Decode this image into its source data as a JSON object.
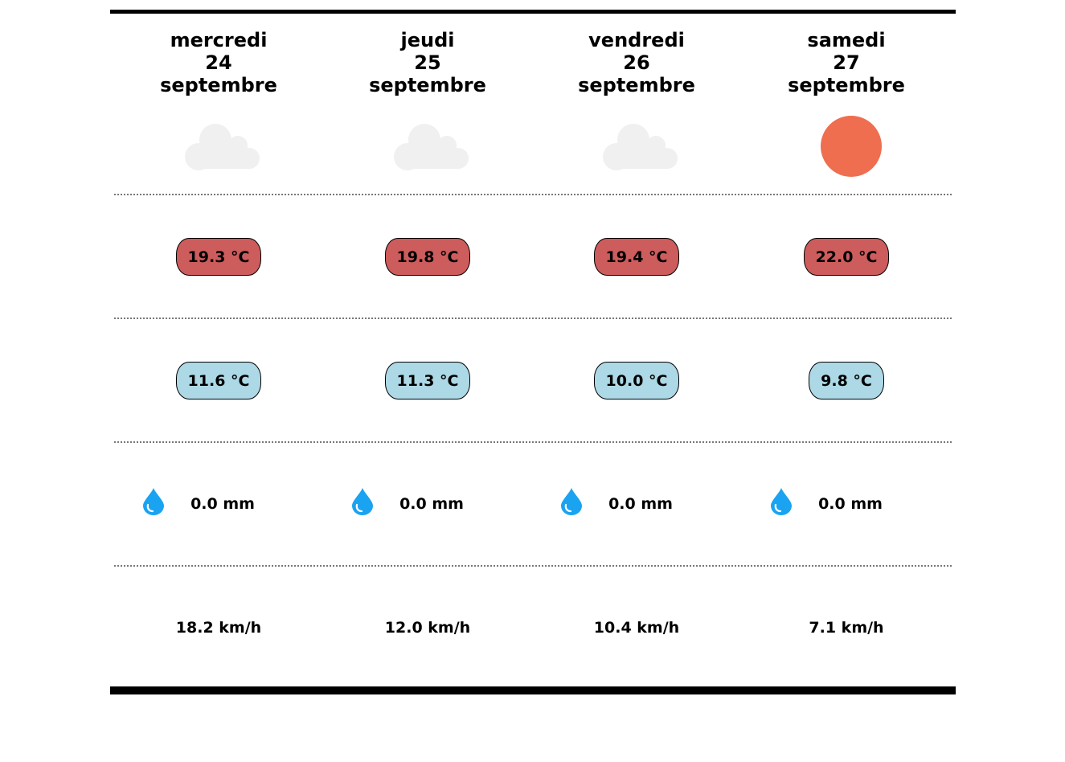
{
  "days": [
    {
      "weekday": "mercredi",
      "day": "24",
      "month": "septembre",
      "icon": "cloud-icon",
      "temp_max": "19.3 °C",
      "temp_min": "11.6 °C",
      "precipitation": "0.0 mm",
      "wind": "18.2 km/h"
    },
    {
      "weekday": "jeudi",
      "day": "25",
      "month": "septembre",
      "icon": "cloud-icon",
      "temp_max": "19.8 °C",
      "temp_min": "11.3 °C",
      "precipitation": "0.0 mm",
      "wind": "12.0 km/h"
    },
    {
      "weekday": "vendredi",
      "day": "26",
      "month": "septembre",
      "icon": "cloud-icon",
      "temp_max": "19.4 °C",
      "temp_min": "10.0 °C",
      "precipitation": "0.0 mm",
      "wind": "10.4 km/h"
    },
    {
      "weekday": "samedi",
      "day": "27",
      "month": "septembre",
      "icon": "sun-icon",
      "temp_max": "22.0 °C",
      "temp_min": "9.8 °C",
      "precipitation": "0.0 mm",
      "wind": "7.1 km/h"
    }
  ],
  "colors": {
    "max_temp_bg": "#cd5c5c",
    "min_temp_bg": "#add8e6",
    "cloud": "#f0f0f0",
    "sun": "#ee6e4f",
    "drop": "#1aa3f0"
  }
}
